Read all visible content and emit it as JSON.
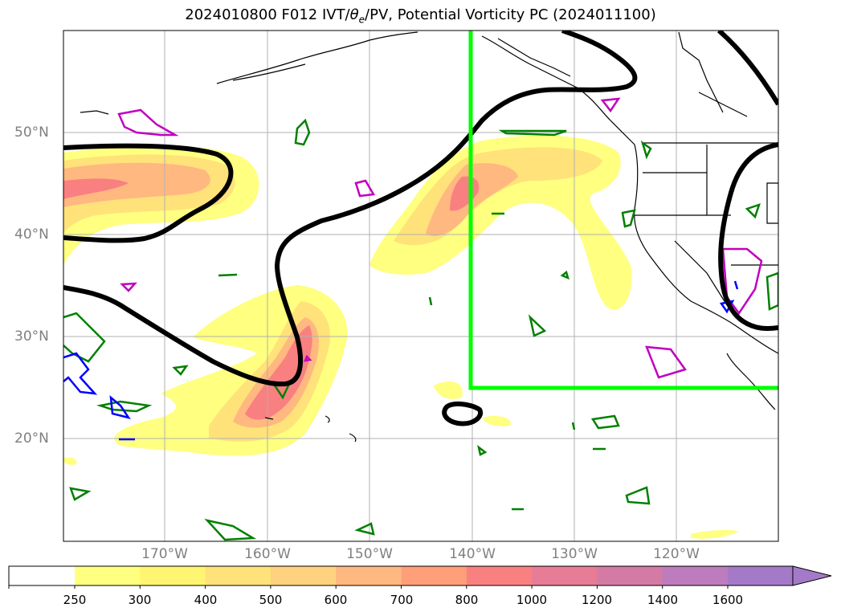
{
  "title": {
    "prefix": "2024010800 F012 IVT/",
    "theta": "θ",
    "theta_sub": "e",
    "suffix": "/PV, Potential Vorticity PC (2024011100)"
  },
  "map": {
    "latitude_labels": [
      "50°N",
      "40°N",
      "30°N",
      "20°N"
    ],
    "longitude_labels": [
      "170°W",
      "160°W",
      "150°W",
      "140°W",
      "130°W",
      "120°W"
    ]
  },
  "colorbar": {
    "levels": [
      "250",
      "300",
      "400",
      "500",
      "600",
      "700",
      "800",
      "1000",
      "1200",
      "1400",
      "1600"
    ],
    "colors": [
      "#ffffff",
      "#ffff80",
      "#fff570",
      "#ffe27a",
      "#ffd27f",
      "#ffb880",
      "#ff9f7a",
      "#f98080",
      "#e67c96",
      "#d47aa4",
      "#bd7cbd",
      "#a47ac8"
    ]
  },
  "colors": {
    "region_box": "#00ff00",
    "pv_contour": "#000000",
    "green_contour": "#008000",
    "magenta_contour": "#c000c0",
    "blue_contour": "#0000ff",
    "grid": "#b0b0b0"
  }
}
